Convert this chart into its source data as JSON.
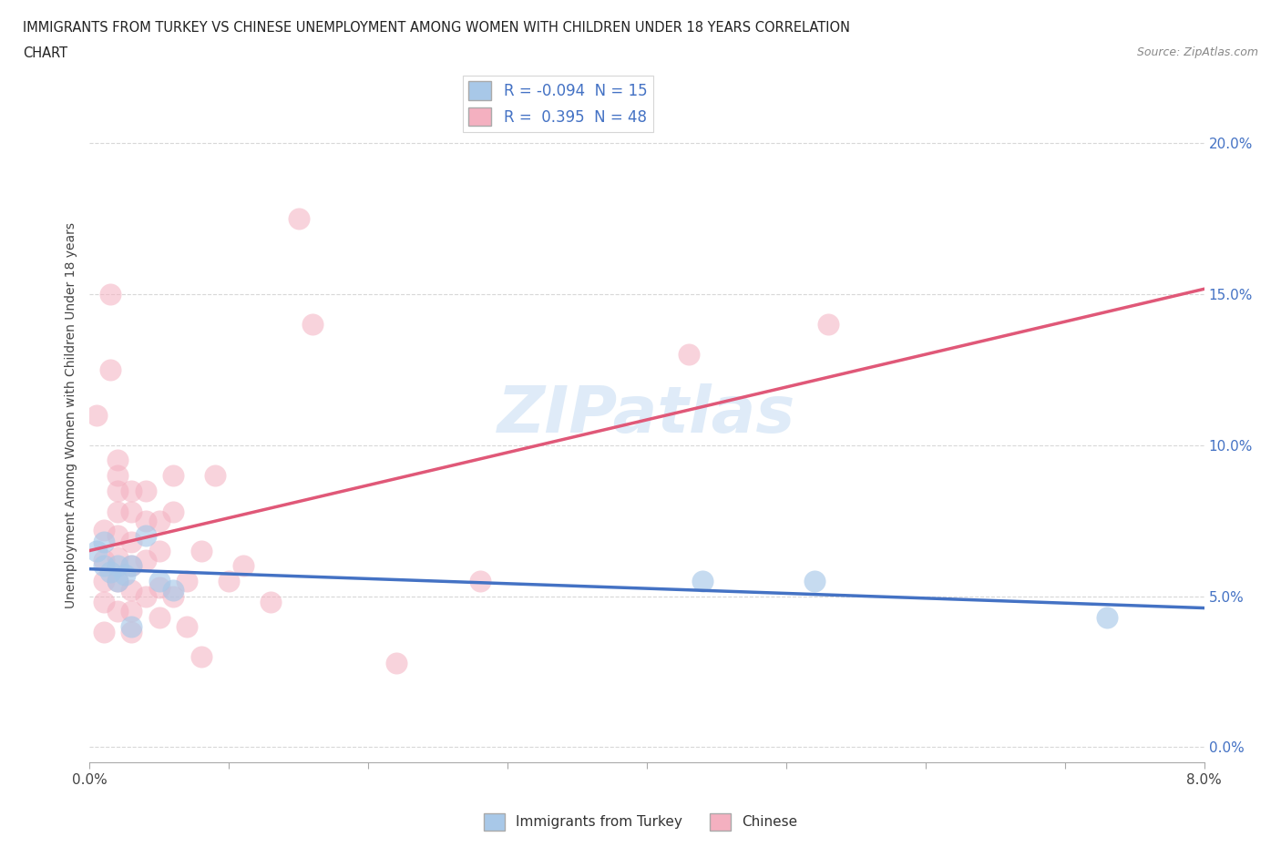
{
  "title_line1": "IMMIGRANTS FROM TURKEY VS CHINESE UNEMPLOYMENT AMONG WOMEN WITH CHILDREN UNDER 18 YEARS CORRELATION",
  "title_line2": "CHART",
  "source": "Source: ZipAtlas.com",
  "ylabel": "Unemployment Among Women with Children Under 18 years",
  "xlim": [
    0.0,
    0.08
  ],
  "ylim": [
    -0.005,
    0.225
  ],
  "ytick_vals": [
    0.0,
    0.05,
    0.1,
    0.15,
    0.2
  ],
  "ytick_labels": [
    "0.0%",
    "5.0%",
    "10.0%",
    "15.0%",
    "20.0%"
  ],
  "xtick_positions": [
    0.0,
    0.01,
    0.02,
    0.03,
    0.04,
    0.05,
    0.06,
    0.07,
    0.08
  ],
  "legend_labels": [
    "Immigrants from Turkey",
    "Chinese"
  ],
  "legend_r": [
    -0.094,
    0.395
  ],
  "legend_n": [
    15,
    48
  ],
  "blue_color": "#a8c8e8",
  "pink_color": "#f4b0c0",
  "blue_line_color": "#4472c4",
  "pink_line_color": "#e05878",
  "turkey_x": [
    0.0005,
    0.001,
    0.001,
    0.0015,
    0.002,
    0.002,
    0.0025,
    0.003,
    0.003,
    0.004,
    0.005,
    0.006,
    0.044,
    0.052,
    0.073
  ],
  "turkey_y": [
    0.065,
    0.068,
    0.06,
    0.058,
    0.06,
    0.055,
    0.057,
    0.06,
    0.04,
    0.07,
    0.055,
    0.052,
    0.055,
    0.055,
    0.043
  ],
  "chinese_x": [
    0.0005,
    0.001,
    0.001,
    0.001,
    0.001,
    0.001,
    0.0015,
    0.0015,
    0.002,
    0.002,
    0.002,
    0.002,
    0.002,
    0.002,
    0.002,
    0.002,
    0.003,
    0.003,
    0.003,
    0.003,
    0.003,
    0.003,
    0.003,
    0.004,
    0.004,
    0.004,
    0.004,
    0.005,
    0.005,
    0.005,
    0.005,
    0.006,
    0.006,
    0.006,
    0.007,
    0.007,
    0.008,
    0.008,
    0.009,
    0.01,
    0.011,
    0.013,
    0.015,
    0.016,
    0.022,
    0.028,
    0.043,
    0.053
  ],
  "chinese_y": [
    0.11,
    0.072,
    0.062,
    0.055,
    0.048,
    0.038,
    0.15,
    0.125,
    0.095,
    0.09,
    0.085,
    0.078,
    0.07,
    0.063,
    0.055,
    0.045,
    0.085,
    0.078,
    0.068,
    0.06,
    0.052,
    0.045,
    0.038,
    0.085,
    0.075,
    0.062,
    0.05,
    0.075,
    0.065,
    0.053,
    0.043,
    0.09,
    0.078,
    0.05,
    0.055,
    0.04,
    0.065,
    0.03,
    0.09,
    0.055,
    0.06,
    0.048,
    0.175,
    0.14,
    0.028,
    0.055,
    0.13,
    0.14
  ],
  "watermark": "ZIPatlas",
  "background_color": "#ffffff",
  "grid_color": "#d8d8d8"
}
